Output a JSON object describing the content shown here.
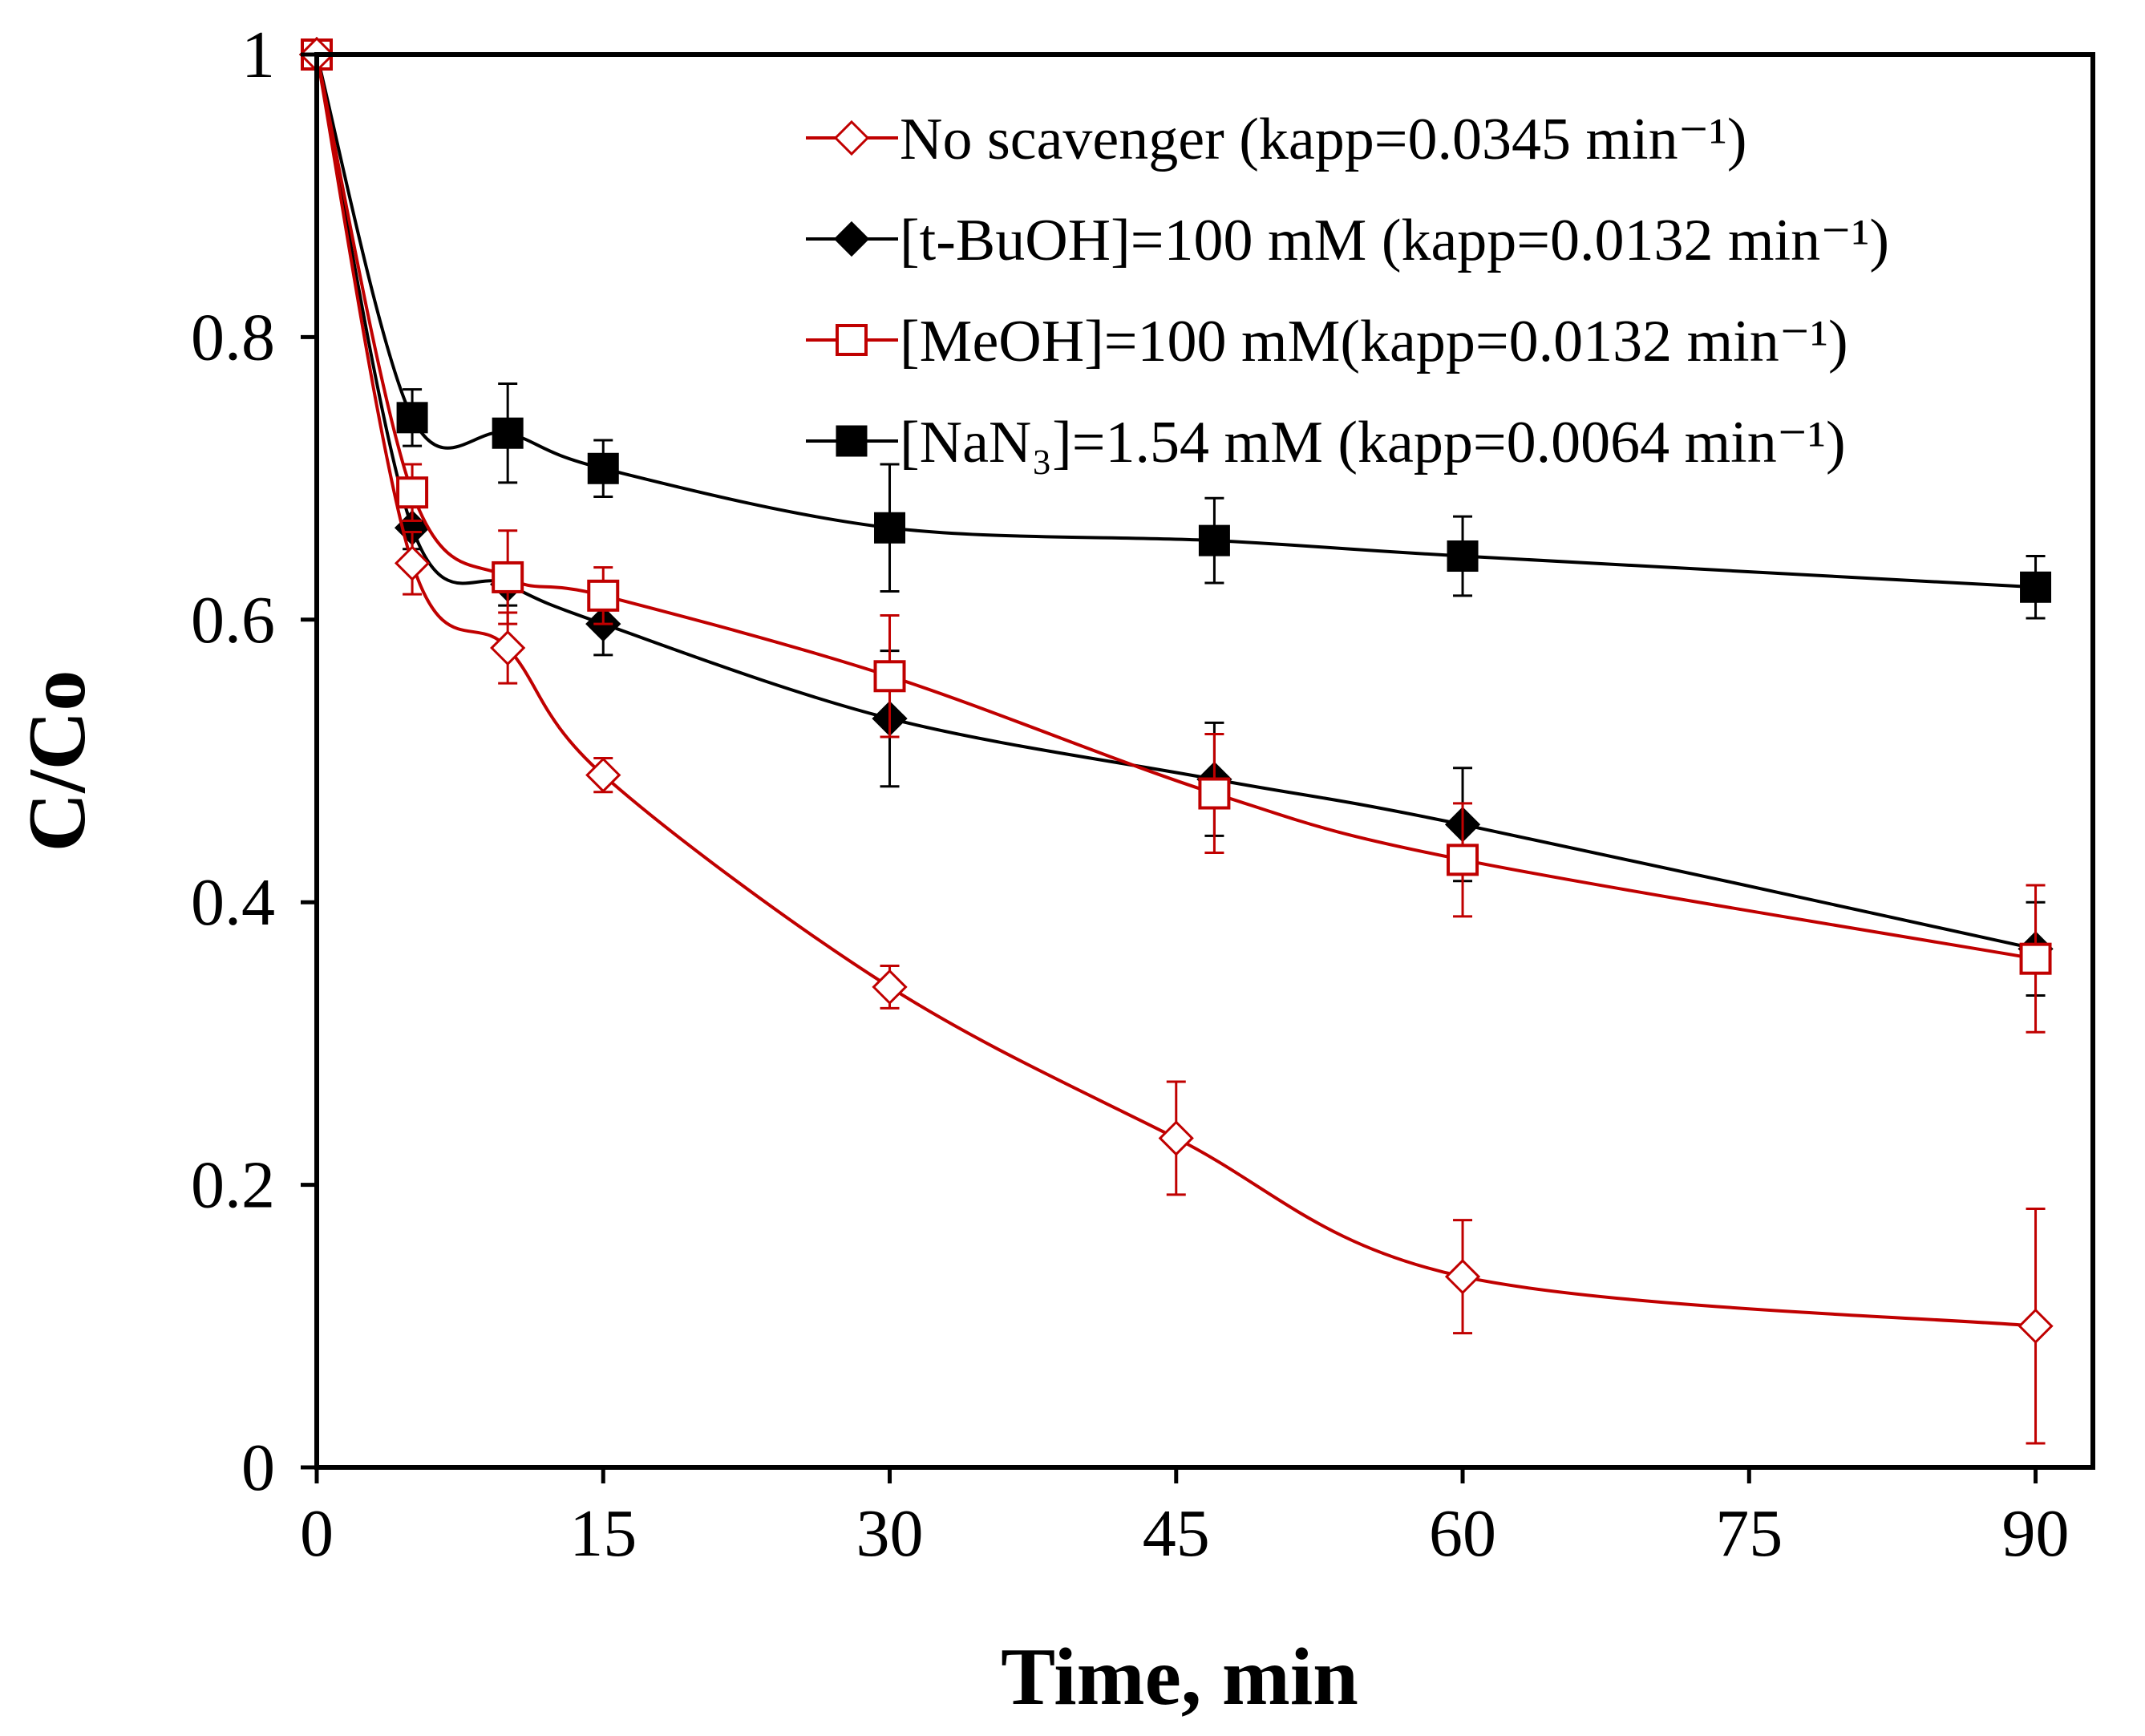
{
  "chart_data": {
    "type": "line",
    "title": "",
    "xlabel": "Time, min",
    "ylabel": "C/Co",
    "xlim": [
      0,
      93
    ],
    "ylim": [
      0,
      1
    ],
    "xticks": [
      0,
      15,
      30,
      45,
      60,
      75,
      90
    ],
    "yticks": [
      0,
      0.2,
      0.4,
      0.6,
      0.8,
      1
    ],
    "xtick_labels": [
      "0",
      "15",
      "30",
      "45",
      "60",
      "75",
      "90"
    ],
    "ytick_labels": [
      "0",
      "0.2",
      "0.4",
      "0.6",
      "0.8",
      "1"
    ],
    "grid": false,
    "legend_position": "top-right",
    "series": [
      {
        "name": "No scavenger (kapp=0.0345 min⁻¹)",
        "color": "#c00000",
        "marker": "diamond-open",
        "x": [
          0,
          5,
          10,
          15,
          30,
          45,
          60,
          90
        ],
        "y": [
          1.0,
          0.64,
          0.58,
          0.49,
          0.34,
          0.233,
          0.135,
          0.1
        ],
        "err": [
          0,
          0.022,
          0.025,
          0.012,
          0.015,
          0.04,
          0.04,
          0.083
        ]
      },
      {
        "name": "[t-BuOH]=100 mM (kapp=0.0132 min⁻¹)",
        "color": "#000000",
        "marker": "diamond-filled",
        "x": [
          0,
          5,
          10,
          15,
          30,
          47,
          60,
          90
        ],
        "y": [
          1.0,
          0.665,
          0.625,
          0.597,
          0.53,
          0.487,
          0.455,
          0.367
        ],
        "err": [
          0,
          0.015,
          0.015,
          0.022,
          0.048,
          0.04,
          0.04,
          0.033
        ]
      },
      {
        "name": "[MeOH]=100 mM(kapp=0.0132 min⁻¹)",
        "color": "#c00000",
        "marker": "square-open",
        "x": [
          0,
          5,
          10,
          15,
          30,
          47,
          60,
          90
        ],
        "y": [
          1.0,
          0.69,
          0.63,
          0.617,
          0.56,
          0.477,
          0.43,
          0.36
        ],
        "err": [
          0,
          0.02,
          0.033,
          0.02,
          0.043,
          0.042,
          0.04,
          0.052
        ]
      },
      {
        "name": "[NaN₃]=1.54 mM (kapp=0.0064 min⁻¹)",
        "color": "#000000",
        "marker": "square-filled",
        "x": [
          0,
          5,
          10,
          15,
          30,
          47,
          60,
          90
        ],
        "y": [
          1.0,
          0.743,
          0.732,
          0.707,
          0.665,
          0.656,
          0.645,
          0.623
        ],
        "err": [
          0,
          0.02,
          0.035,
          0.02,
          0.045,
          0.03,
          0.028,
          0.022
        ]
      }
    ]
  }
}
